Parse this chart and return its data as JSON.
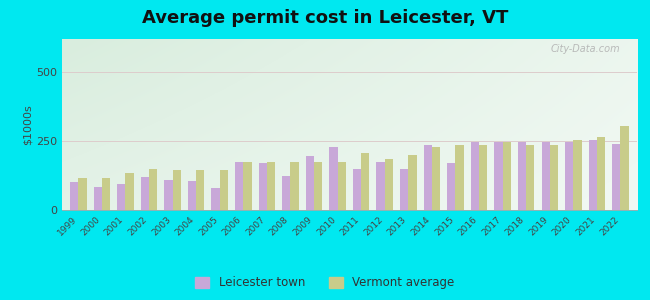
{
  "title": "Average permit cost in Leicester, VT",
  "ylabel": "$1000s",
  "years": [
    1999,
    2000,
    2001,
    2002,
    2003,
    2004,
    2005,
    2006,
    2007,
    2008,
    2009,
    2010,
    2011,
    2012,
    2013,
    2014,
    2015,
    2016,
    2017,
    2018,
    2019,
    2020,
    2021,
    2022
  ],
  "leicester": [
    100,
    85,
    95,
    120,
    110,
    105,
    80,
    175,
    170,
    125,
    195,
    230,
    150,
    175,
    150,
    235,
    170,
    245,
    245,
    245,
    245,
    248,
    255,
    240
  ],
  "vermont": [
    115,
    115,
    135,
    150,
    145,
    145,
    145,
    175,
    175,
    175,
    175,
    175,
    205,
    185,
    200,
    230,
    235,
    235,
    245,
    235,
    235,
    255,
    265,
    305
  ],
  "leicester_color": "#c8a8d8",
  "vermont_color": "#c8cc8a",
  "outer_bg": "#00e8f0",
  "grad_topleft": "#b8e8c8",
  "grad_topright": "#e8f8f0",
  "grad_bottom": "#e0f5e0",
  "ylim": [
    0,
    620
  ],
  "yticks": [
    0,
    250,
    500
  ],
  "bar_width": 0.35,
  "title_fontsize": 13
}
